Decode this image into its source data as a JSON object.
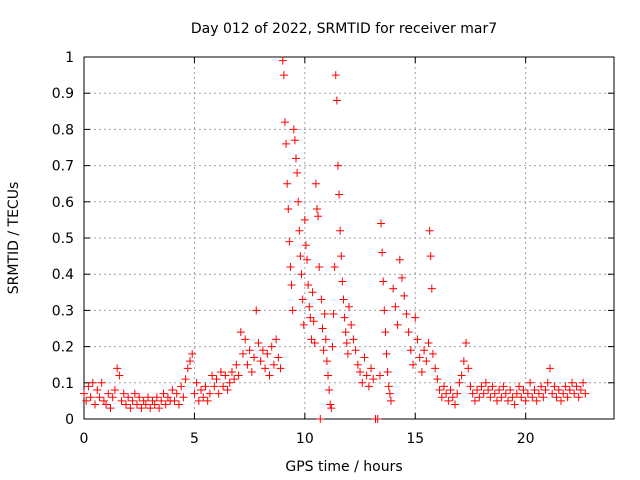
{
  "chart_data": {
    "type": "scatter",
    "title": "Day 012 of 2022, SRMTID for receiver mar7",
    "xlabel": "GPS time / hours",
    "ylabel": "SRMTID / TECUs",
    "xlim": [
      0,
      24
    ],
    "ylim": [
      0,
      1
    ],
    "xticks": [
      0,
      5,
      10,
      15,
      20
    ],
    "yticks": [
      0,
      0.1,
      0.2,
      0.3,
      0.4,
      0.5,
      0.6,
      0.7,
      0.8,
      0.9,
      1
    ],
    "xtick_labels": [
      "0",
      "5",
      "10",
      "15",
      "20"
    ],
    "ytick_labels": [
      "0",
      "0.1",
      "0.2",
      "0.3",
      "0.4",
      "0.5",
      "0.6",
      "0.7",
      "0.8",
      "0.9",
      "1"
    ],
    "grid": true,
    "marker": "+",
    "series": [
      {
        "name": "SRMTID",
        "color": "#ff0000",
        "points": [
          [
            0.0,
            0.07
          ],
          [
            0.1,
            0.05
          ],
          [
            0.2,
            0.09
          ],
          [
            0.3,
            0.06
          ],
          [
            0.4,
            0.1
          ],
          [
            0.5,
            0.04
          ],
          [
            0.6,
            0.08
          ],
          [
            0.7,
            0.06
          ],
          [
            0.8,
            0.1
          ],
          [
            0.9,
            0.05
          ],
          [
            1.0,
            0.04
          ],
          [
            1.1,
            0.07
          ],
          [
            1.2,
            0.03
          ],
          [
            1.3,
            0.06
          ],
          [
            1.4,
            0.08
          ],
          [
            1.5,
            0.14
          ],
          [
            1.6,
            0.12
          ],
          [
            1.7,
            0.05
          ],
          [
            1.8,
            0.07
          ],
          [
            1.9,
            0.04
          ],
          [
            2.0,
            0.06
          ],
          [
            2.1,
            0.03
          ],
          [
            2.2,
            0.05
          ],
          [
            2.3,
            0.07
          ],
          [
            2.4,
            0.04
          ],
          [
            2.5,
            0.06
          ],
          [
            2.6,
            0.03
          ],
          [
            2.7,
            0.05
          ],
          [
            2.8,
            0.04
          ],
          [
            2.9,
            0.06
          ],
          [
            3.0,
            0.03
          ],
          [
            3.1,
            0.05
          ],
          [
            3.2,
            0.04
          ],
          [
            3.3,
            0.06
          ],
          [
            3.4,
            0.03
          ],
          [
            3.5,
            0.05
          ],
          [
            3.6,
            0.07
          ],
          [
            3.7,
            0.04
          ],
          [
            3.8,
            0.06
          ],
          [
            3.9,
            0.05
          ],
          [
            4.0,
            0.08
          ],
          [
            4.1,
            0.05
          ],
          [
            4.2,
            0.07
          ],
          [
            4.3,
            0.04
          ],
          [
            4.4,
            0.09
          ],
          [
            4.5,
            0.06
          ],
          [
            4.6,
            0.11
          ],
          [
            4.7,
            0.14
          ],
          [
            4.8,
            0.16
          ],
          [
            4.9,
            0.18
          ],
          [
            5.0,
            0.07
          ],
          [
            5.1,
            0.1
          ],
          [
            5.2,
            0.05
          ],
          [
            5.3,
            0.08
          ],
          [
            5.4,
            0.06
          ],
          [
            5.5,
            0.09
          ],
          [
            5.6,
            0.05
          ],
          [
            5.7,
            0.07
          ],
          [
            5.8,
            0.12
          ],
          [
            5.9,
            0.09
          ],
          [
            6.0,
            0.11
          ],
          [
            6.1,
            0.07
          ],
          [
            6.2,
            0.13
          ],
          [
            6.3,
            0.09
          ],
          [
            6.4,
            0.12
          ],
          [
            6.5,
            0.08
          ],
          [
            6.6,
            0.1
          ],
          [
            6.7,
            0.13
          ],
          [
            6.8,
            0.11
          ],
          [
            6.9,
            0.15
          ],
          [
            7.0,
            0.12
          ],
          [
            7.1,
            0.24
          ],
          [
            7.2,
            0.18
          ],
          [
            7.3,
            0.22
          ],
          [
            7.4,
            0.15
          ],
          [
            7.5,
            0.19
          ],
          [
            7.6,
            0.13
          ],
          [
            7.7,
            0.17
          ],
          [
            7.8,
            0.3
          ],
          [
            7.9,
            0.21
          ],
          [
            8.0,
            0.16
          ],
          [
            8.1,
            0.19
          ],
          [
            8.2,
            0.14
          ],
          [
            8.3,
            0.18
          ],
          [
            8.4,
            0.12
          ],
          [
            8.5,
            0.2
          ],
          [
            8.6,
            0.15
          ],
          [
            8.7,
            0.22
          ],
          [
            8.8,
            0.17
          ],
          [
            8.9,
            0.14
          ],
          [
            9.0,
            0.99
          ],
          [
            9.05,
            0.95
          ],
          [
            9.1,
            0.82
          ],
          [
            9.15,
            0.76
          ],
          [
            9.2,
            0.65
          ],
          [
            9.25,
            0.58
          ],
          [
            9.3,
            0.49
          ],
          [
            9.35,
            0.42
          ],
          [
            9.4,
            0.37
          ],
          [
            9.45,
            0.3
          ],
          [
            9.5,
            0.8
          ],
          [
            9.55,
            0.77
          ],
          [
            9.6,
            0.72
          ],
          [
            9.65,
            0.68
          ],
          [
            9.7,
            0.6
          ],
          [
            9.75,
            0.52
          ],
          [
            9.8,
            0.45
          ],
          [
            9.85,
            0.4
          ],
          [
            9.9,
            0.33
          ],
          [
            9.95,
            0.26
          ],
          [
            10.0,
            0.55
          ],
          [
            10.05,
            0.48
          ],
          [
            10.1,
            0.44
          ],
          [
            10.15,
            0.37
          ],
          [
            10.2,
            0.31
          ],
          [
            10.25,
            0.28
          ],
          [
            10.3,
            0.22
          ],
          [
            10.35,
            0.35
          ],
          [
            10.4,
            0.27
          ],
          [
            10.45,
            0.21
          ],
          [
            10.5,
            0.65
          ],
          [
            10.55,
            0.58
          ],
          [
            10.6,
            0.56
          ],
          [
            10.65,
            0.42
          ],
          [
            10.7,
            0.0
          ],
          [
            10.75,
            0.33
          ],
          [
            10.8,
            0.25
          ],
          [
            10.85,
            0.19
          ],
          [
            10.9,
            0.29
          ],
          [
            10.95,
            0.22
          ],
          [
            11.0,
            0.16
          ],
          [
            11.05,
            0.12
          ],
          [
            11.1,
            0.08
          ],
          [
            11.15,
            0.04
          ],
          [
            11.2,
            0.03
          ],
          [
            11.25,
            0.2
          ],
          [
            11.3,
            0.29
          ],
          [
            11.35,
            0.42
          ],
          [
            11.4,
            0.95
          ],
          [
            11.45,
            0.88
          ],
          [
            11.5,
            0.7
          ],
          [
            11.55,
            0.62
          ],
          [
            11.6,
            0.52
          ],
          [
            11.65,
            0.45
          ],
          [
            11.7,
            0.38
          ],
          [
            11.75,
            0.33
          ],
          [
            11.8,
            0.28
          ],
          [
            11.85,
            0.24
          ],
          [
            11.9,
            0.21
          ],
          [
            11.95,
            0.18
          ],
          [
            12.0,
            0.31
          ],
          [
            12.1,
            0.26
          ],
          [
            12.2,
            0.22
          ],
          [
            12.3,
            0.19
          ],
          [
            12.4,
            0.15
          ],
          [
            12.5,
            0.13
          ],
          [
            12.6,
            0.1
          ],
          [
            12.7,
            0.17
          ],
          [
            12.8,
            0.12
          ],
          [
            12.9,
            0.09
          ],
          [
            13.0,
            0.14
          ],
          [
            13.1,
            0.11
          ],
          [
            13.2,
            0.0
          ],
          [
            13.3,
            0.0
          ],
          [
            13.4,
            0.12
          ],
          [
            13.45,
            0.54
          ],
          [
            13.5,
            0.46
          ],
          [
            13.55,
            0.38
          ],
          [
            13.6,
            0.3
          ],
          [
            13.65,
            0.24
          ],
          [
            13.7,
            0.18
          ],
          [
            13.75,
            0.13
          ],
          [
            13.8,
            0.09
          ],
          [
            13.85,
            0.07
          ],
          [
            13.9,
            0.05
          ],
          [
            14.0,
            0.36
          ],
          [
            14.1,
            0.31
          ],
          [
            14.2,
            0.26
          ],
          [
            14.3,
            0.44
          ],
          [
            14.4,
            0.39
          ],
          [
            14.5,
            0.34
          ],
          [
            14.6,
            0.29
          ],
          [
            14.7,
            0.24
          ],
          [
            14.8,
            0.19
          ],
          [
            14.9,
            0.15
          ],
          [
            15.0,
            0.28
          ],
          [
            15.1,
            0.22
          ],
          [
            15.2,
            0.17
          ],
          [
            15.3,
            0.13
          ],
          [
            15.4,
            0.19
          ],
          [
            15.5,
            0.16
          ],
          [
            15.6,
            0.21
          ],
          [
            15.65,
            0.52
          ],
          [
            15.7,
            0.45
          ],
          [
            15.75,
            0.36
          ],
          [
            15.8,
            0.18
          ],
          [
            15.9,
            0.14
          ],
          [
            16.0,
            0.11
          ],
          [
            16.1,
            0.08
          ],
          [
            16.2,
            0.06
          ],
          [
            16.3,
            0.09
          ],
          [
            16.4,
            0.07
          ],
          [
            16.5,
            0.05
          ],
          [
            16.6,
            0.08
          ],
          [
            16.7,
            0.06
          ],
          [
            16.8,
            0.04
          ],
          [
            16.9,
            0.07
          ],
          [
            17.0,
            0.1
          ],
          [
            17.1,
            0.12
          ],
          [
            17.2,
            0.16
          ],
          [
            17.3,
            0.21
          ],
          [
            17.4,
            0.14
          ],
          [
            17.5,
            0.09
          ],
          [
            17.6,
            0.07
          ],
          [
            17.7,
            0.05
          ],
          [
            17.8,
            0.08
          ],
          [
            17.9,
            0.06
          ],
          [
            18.0,
            0.09
          ],
          [
            18.1,
            0.07
          ],
          [
            18.2,
            0.1
          ],
          [
            18.3,
            0.08
          ],
          [
            18.4,
            0.06
          ],
          [
            18.5,
            0.09
          ],
          [
            18.6,
            0.07
          ],
          [
            18.7,
            0.05
          ],
          [
            18.8,
            0.08
          ],
          [
            18.9,
            0.06
          ],
          [
            19.0,
            0.09
          ],
          [
            19.1,
            0.07
          ],
          [
            19.2,
            0.05
          ],
          [
            19.3,
            0.08
          ],
          [
            19.4,
            0.06
          ],
          [
            19.5,
            0.04
          ],
          [
            19.6,
            0.07
          ],
          [
            19.7,
            0.09
          ],
          [
            19.8,
            0.06
          ],
          [
            19.9,
            0.08
          ],
          [
            20.0,
            0.05
          ],
          [
            20.1,
            0.07
          ],
          [
            20.2,
            0.1
          ],
          [
            20.3,
            0.06
          ],
          [
            20.4,
            0.08
          ],
          [
            20.5,
            0.05
          ],
          [
            20.6,
            0.07
          ],
          [
            20.7,
            0.09
          ],
          [
            20.8,
            0.06
          ],
          [
            20.9,
            0.08
          ],
          [
            21.0,
            0.1
          ],
          [
            21.1,
            0.14
          ],
          [
            21.2,
            0.07
          ],
          [
            21.3,
            0.09
          ],
          [
            21.4,
            0.06
          ],
          [
            21.5,
            0.08
          ],
          [
            21.6,
            0.05
          ],
          [
            21.7,
            0.07
          ],
          [
            21.8,
            0.09
          ],
          [
            21.9,
            0.06
          ],
          [
            22.0,
            0.08
          ],
          [
            22.1,
            0.1
          ],
          [
            22.2,
            0.07
          ],
          [
            22.3,
            0.09
          ],
          [
            22.4,
            0.06
          ],
          [
            22.5,
            0.08
          ],
          [
            22.6,
            0.1
          ],
          [
            22.7,
            0.07
          ]
        ]
      }
    ]
  }
}
